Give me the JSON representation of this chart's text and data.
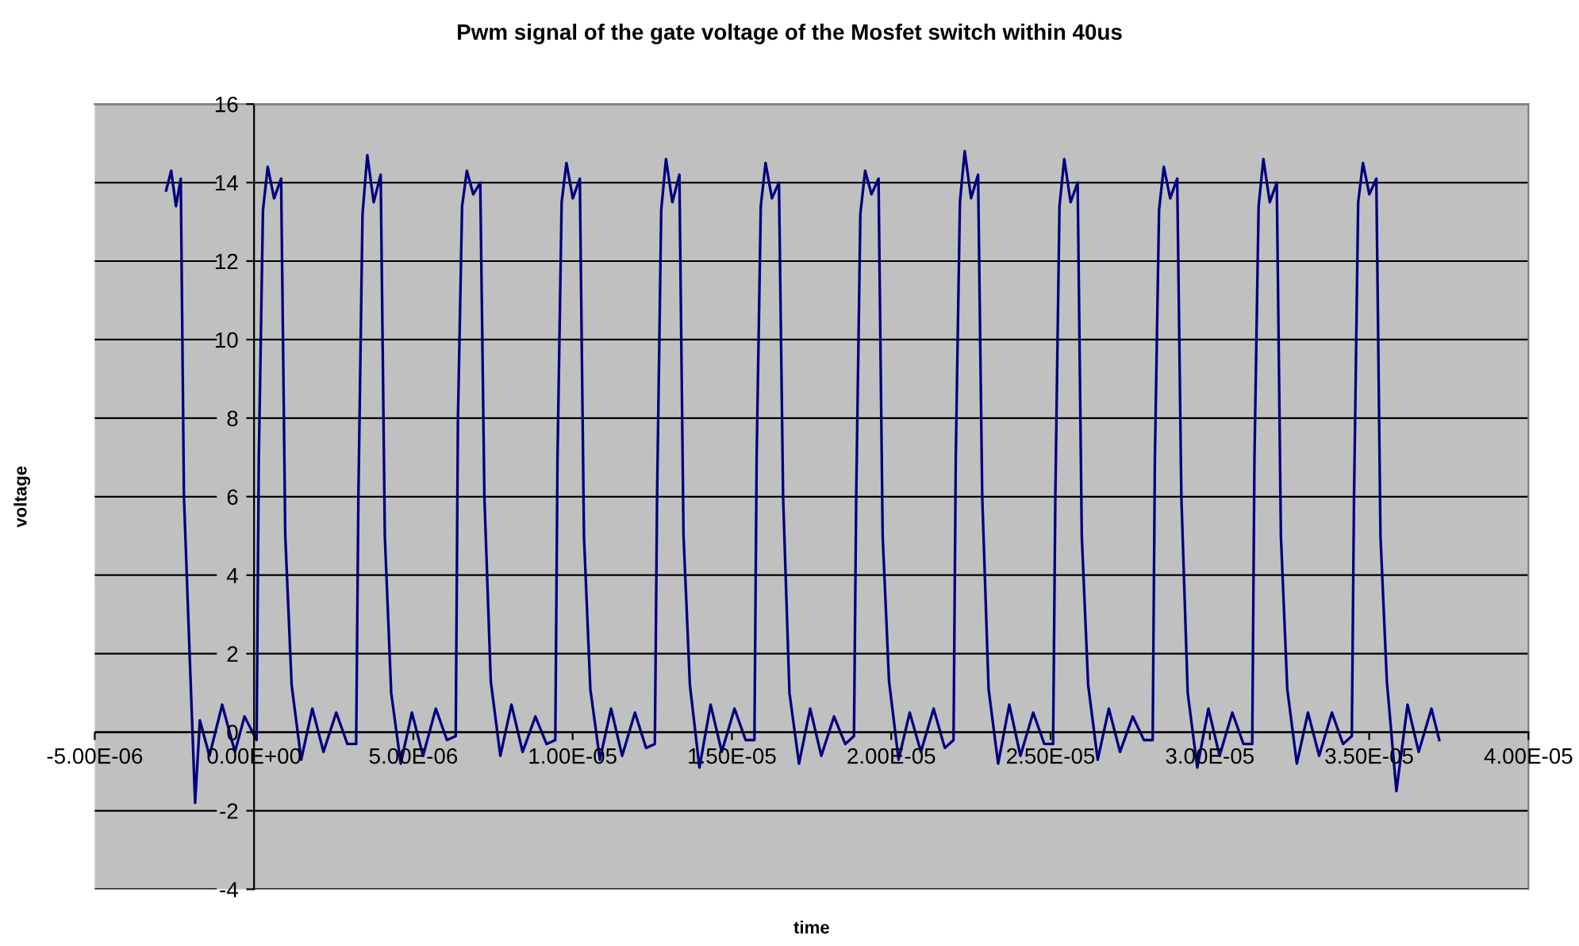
{
  "chart_data": {
    "type": "line",
    "title": "Pwm signal of the gate voltage of the Mosfet switch within 40us",
    "xlabel": "time",
    "ylabel": "voltage",
    "x": [
      -2.76e-06,
      -2.6e-06,
      -2.45e-06,
      -2.3e-06,
      -2.2e-06,
      -2e-06,
      -1.85e-06,
      -1.7e-06,
      -1.4e-06,
      -1e-06,
      -6e-07,
      -3e-07,
      8e-08,
      1.5e-07,
      2.8e-07,
      4.3e-07,
      6.3e-07,
      8.5e-07,
      9.8e-07,
      1.18e-06,
      1.48e-06,
      1.83e-06,
      2.18e-06,
      2.58e-06,
      2.93e-06,
      3.205e-06,
      3.275e-06,
      3.405e-06,
      3.555e-06,
      3.755e-06,
      3.975e-06,
      4.105e-06,
      4.305e-06,
      4.605e-06,
      4.955e-06,
      5.305e-06,
      5.705e-06,
      6.055e-06,
      6.33e-06,
      6.4e-06,
      6.53e-06,
      6.68e-06,
      6.88e-06,
      7.1e-06,
      7.23e-06,
      7.43e-06,
      7.73e-06,
      8.08e-06,
      8.43e-06,
      8.83e-06,
      9.18e-06,
      9.455e-06,
      9.525e-06,
      9.655e-06,
      9.805e-06,
      1.0005e-05,
      1.0225e-05,
      1.0355e-05,
      1.0555e-05,
      1.0855e-05,
      1.1205e-05,
      1.1555e-05,
      1.1955e-05,
      1.2305e-05,
      1.258e-05,
      1.265e-05,
      1.278e-05,
      1.293e-05,
      1.313e-05,
      1.335e-05,
      1.348e-05,
      1.368e-05,
      1.398e-05,
      1.433e-05,
      1.468e-05,
      1.508e-05,
      1.543e-05,
      1.5705e-05,
      1.5775e-05,
      1.5905e-05,
      1.6055e-05,
      1.6255e-05,
      1.6475e-05,
      1.6605e-05,
      1.6805e-05,
      1.7105e-05,
      1.7455e-05,
      1.7805e-05,
      1.8205e-05,
      1.8555e-05,
      1.883e-05,
      1.89e-05,
      1.903e-05,
      1.918e-05,
      1.938e-05,
      1.96e-05,
      1.973e-05,
      1.993e-05,
      2.023e-05,
      2.058e-05,
      2.093e-05,
      2.133e-05,
      2.168e-05,
      2.1955e-05,
      2.2025e-05,
      2.2155e-05,
      2.2305e-05,
      2.2505e-05,
      2.2725e-05,
      2.2855e-05,
      2.3055e-05,
      2.3355e-05,
      2.3705e-05,
      2.4055e-05,
      2.4455e-05,
      2.4805e-05,
      2.508e-05,
      2.515e-05,
      2.528e-05,
      2.543e-05,
      2.563e-05,
      2.585e-05,
      2.598e-05,
      2.618e-05,
      2.648e-05,
      2.683e-05,
      2.718e-05,
      2.758e-05,
      2.793e-05,
      2.8205e-05,
      2.8275e-05,
      2.8405e-05,
      2.8555e-05,
      2.8755e-05,
      2.8975e-05,
      2.9105e-05,
      2.9305e-05,
      2.9605e-05,
      2.9955e-05,
      3.0305e-05,
      3.0705e-05,
      3.1055e-05,
      3.133e-05,
      3.14e-05,
      3.153e-05,
      3.168e-05,
      3.188e-05,
      3.21e-05,
      3.223e-05,
      3.243e-05,
      3.273e-05,
      3.308e-05,
      3.343e-05,
      3.383e-05,
      3.418e-05,
      3.4455e-05,
      3.4525e-05,
      3.4655e-05,
      3.4805e-05,
      3.5005e-05,
      3.5225e-05,
      3.5355e-05,
      3.5555e-05,
      3.5855e-05,
      3.6205e-05,
      3.6555e-05,
      3.6955e-05,
      3.72e-05
    ],
    "series": [
      {
        "color": "#000080",
        "values": [
          13.8,
          14.3,
          13.4,
          14.1,
          6,
          1.5,
          -1.8,
          0.3,
          -0.6,
          0.7,
          -0.5,
          0.4,
          -0.2,
          7,
          13.3,
          14.4,
          13.6,
          14.1,
          5,
          1.2,
          -0.7,
          0.6,
          -0.5,
          0.5,
          -0.3,
          -0.3,
          6,
          13.2,
          14.7,
          13.5,
          14.2,
          5,
          1.0,
          -0.8,
          0.5,
          -0.6,
          0.6,
          -0.2,
          -0.1,
          8,
          13.4,
          14.3,
          13.7,
          14.0,
          6,
          1.3,
          -0.6,
          0.7,
          -0.5,
          0.4,
          -0.3,
          -0.2,
          7,
          13.5,
          14.5,
          13.6,
          14.1,
          5,
          1.1,
          -0.7,
          0.6,
          -0.6,
          0.5,
          -0.4,
          -0.3,
          6,
          13.3,
          14.6,
          13.5,
          14.2,
          5,
          1.2,
          -0.9,
          0.7,
          -0.5,
          0.6,
          -0.2,
          -0.2,
          7,
          13.4,
          14.5,
          13.6,
          14.0,
          6,
          1.0,
          -0.8,
          0.6,
          -0.6,
          0.4,
          -0.3,
          -0.1,
          6,
          13.2,
          14.3,
          13.7,
          14.1,
          5,
          1.3,
          -0.7,
          0.5,
          -0.5,
          0.6,
          -0.4,
          -0.2,
          7,
          13.5,
          14.8,
          13.6,
          14.2,
          6,
          1.1,
          -0.8,
          0.7,
          -0.6,
          0.5,
          -0.3,
          -0.3,
          6,
          13.4,
          14.6,
          13.5,
          14.0,
          5,
          1.2,
          -0.7,
          0.6,
          -0.5,
          0.4,
          -0.2,
          -0.2,
          7,
          13.3,
          14.4,
          13.6,
          14.1,
          6,
          1.0,
          -0.9,
          0.6,
          -0.6,
          0.5,
          -0.3,
          -0.3,
          7,
          13.4,
          14.6,
          13.5,
          14.0,
          5,
          1.1,
          -0.8,
          0.5,
          -0.6,
          0.5,
          -0.3,
          -0.1,
          6,
          13.5,
          14.5,
          13.7,
          14.1,
          5,
          1.3,
          -1.5,
          0.7,
          -0.5,
          0.6,
          -0.2
        ]
      }
    ],
    "xlim": [
      -5e-06,
      4e-05
    ],
    "ylim": [
      -4,
      16
    ],
    "xticks": [
      {
        "value": -5e-06,
        "label": "-5.00E-06"
      },
      {
        "value": 0,
        "label": "0.00E+00"
      },
      {
        "value": 5e-06,
        "label": "5.00E-06"
      },
      {
        "value": 1e-05,
        "label": "1.00E-05"
      },
      {
        "value": 1.5e-05,
        "label": "1.50E-05"
      },
      {
        "value": 2e-05,
        "label": "2.00E-05"
      },
      {
        "value": 2.5e-05,
        "label": "2.50E-05"
      },
      {
        "value": 3e-05,
        "label": "3.00E-05"
      },
      {
        "value": 3.5e-05,
        "label": "3.50E-05"
      },
      {
        "value": 4e-05,
        "label": "4.00E-05"
      }
    ],
    "yticks": [
      -4,
      -2,
      0,
      2,
      4,
      6,
      8,
      10,
      12,
      14,
      16
    ],
    "grid": "y",
    "marker": "none",
    "line_style": "solid",
    "legend": false
  }
}
